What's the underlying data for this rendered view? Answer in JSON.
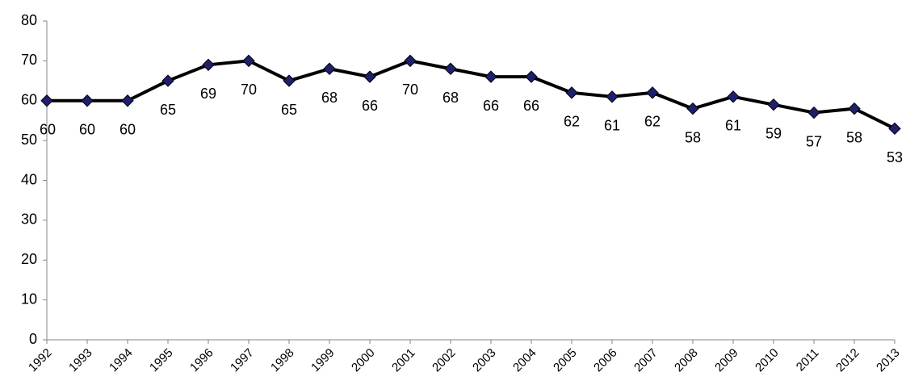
{
  "chart_data": {
    "type": "line",
    "categories": [
      "1992",
      "1993",
      "1994",
      "1995",
      "1996",
      "1997",
      "1998",
      "1999",
      "2000",
      "2001",
      "2002",
      "2003",
      "2004",
      "2005",
      "2006",
      "2007",
      "2008",
      "2009",
      "2010",
      "2011",
      "2012",
      "2013"
    ],
    "series": [
      {
        "color": "#000000",
        "marker_color": "#1f1f6e",
        "values": [
          60,
          60,
          60,
          65,
          69,
          70,
          65,
          68,
          66,
          70,
          68,
          66,
          66,
          62,
          61,
          62,
          58,
          61,
          59,
          57,
          58,
          53
        ]
      }
    ],
    "ylim": [
      0,
      80
    ],
    "yticks": [
      0,
      10,
      20,
      30,
      40,
      50,
      60,
      70,
      80
    ],
    "grid": false,
    "data_labels": true
  }
}
